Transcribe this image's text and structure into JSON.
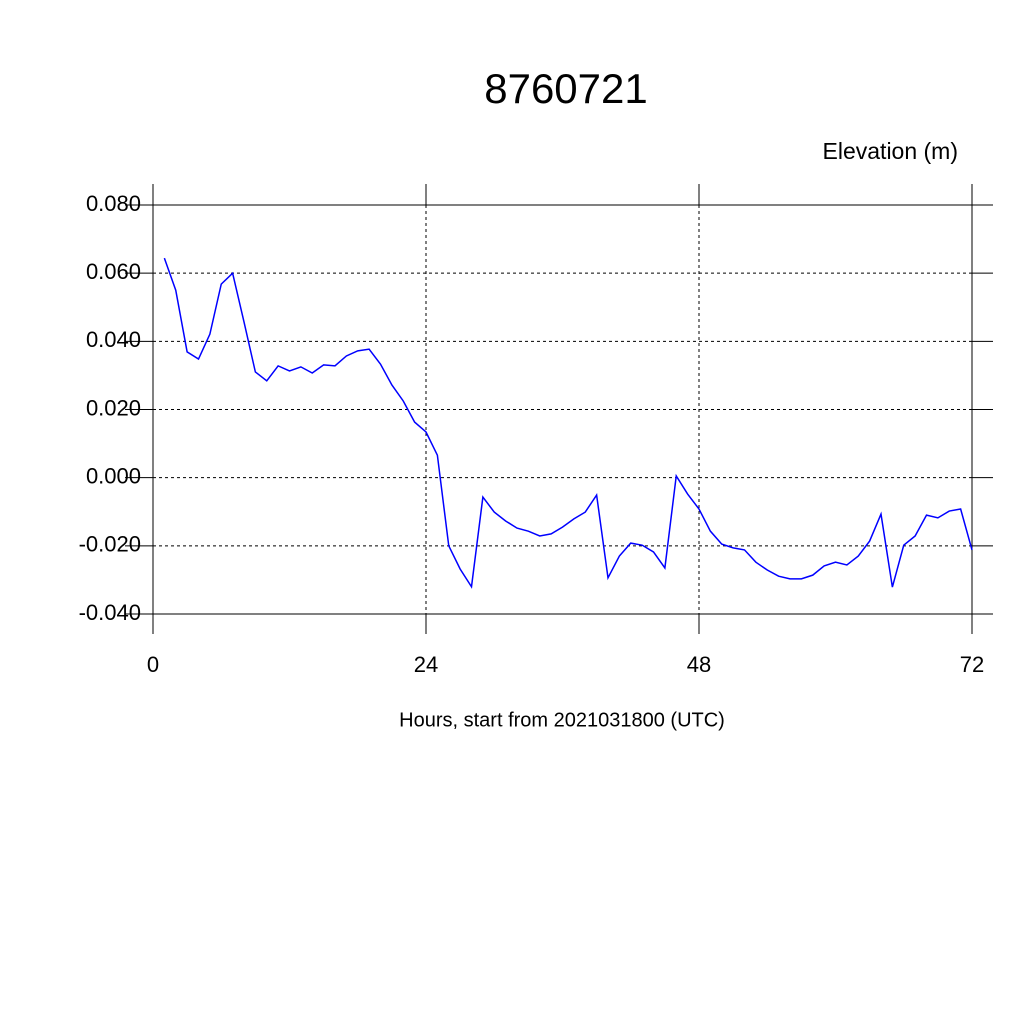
{
  "chart_data": {
    "type": "line",
    "title": "8760721",
    "y_label": "Elevation (m)",
    "x_label": "Hours, start from 2021031800 (UTC)",
    "x": [
      1,
      2,
      3,
      4,
      5,
      6,
      7,
      8,
      9,
      10,
      11,
      12,
      13,
      14,
      15,
      16,
      17,
      18,
      19,
      20,
      21,
      22,
      23,
      24,
      25,
      26,
      27,
      28,
      29,
      30,
      31,
      32,
      33,
      34,
      35,
      36,
      37,
      38,
      39,
      40,
      41,
      42,
      43,
      44,
      45,
      46,
      47,
      48,
      49,
      50,
      51,
      52,
      53,
      54,
      55,
      56,
      57,
      58,
      59,
      60,
      61,
      62,
      63,
      64,
      65,
      66,
      67,
      68,
      69,
      70,
      71,
      72
    ],
    "series": [
      {
        "color": "#0000ff",
        "values": [
          0.0644,
          0.055,
          0.0369,
          0.0348,
          0.0421,
          0.0568,
          0.06,
          0.0457,
          0.031,
          0.0284,
          0.0328,
          0.0313,
          0.0325,
          0.0307,
          0.0331,
          0.0328,
          0.0357,
          0.0372,
          0.0377,
          0.0333,
          0.0272,
          0.0225,
          0.0163,
          0.0134,
          0.0066,
          -0.02,
          -0.0268,
          -0.032,
          -0.0057,
          -0.0101,
          -0.0127,
          -0.0148,
          -0.0157,
          -0.0171,
          -0.0165,
          -0.0145,
          -0.0121,
          -0.0101,
          -0.0051,
          -0.0294,
          -0.023,
          -0.0192,
          -0.0198,
          -0.0218,
          -0.0265,
          0.0005,
          -0.0048,
          -0.0092,
          -0.0157,
          -0.0195,
          -0.0206,
          -0.0212,
          -0.0248,
          -0.0271,
          -0.0289,
          -0.0297,
          -0.0297,
          -0.0286,
          -0.0259,
          -0.0248,
          -0.0256,
          -0.023,
          -0.0186,
          -0.0107,
          -0.0321,
          -0.0198,
          -0.0171,
          -0.011,
          -0.0118,
          -0.0098,
          -0.0092,
          -0.0212
        ]
      }
    ],
    "xlim": [
      0,
      72
    ],
    "xticks": [
      0,
      24,
      48,
      72
    ],
    "ylim": [
      -0.04,
      0.08
    ],
    "yticks": [
      {
        "value": -0.04,
        "label": "-0.040"
      },
      {
        "value": -0.02,
        "label": "-0.020"
      },
      {
        "value": 0,
        "label": "0.000"
      },
      {
        "value": 0.02,
        "label": "0.020"
      },
      {
        "value": 0.04,
        "label": "0.040"
      },
      {
        "value": 0.06,
        "label": "0.060"
      },
      {
        "value": 0.08,
        "label": "0.080"
      }
    ],
    "grid": true
  }
}
